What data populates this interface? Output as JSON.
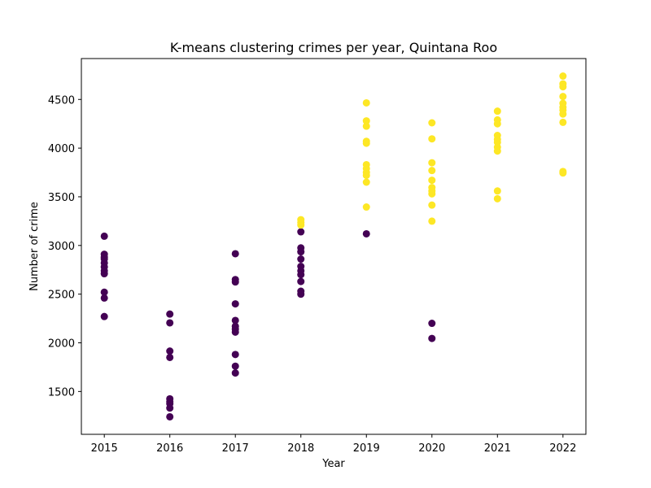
{
  "chart_data": {
    "type": "scatter",
    "title": "K-means clustering crimes per year, Quintana Roo",
    "xlabel": "Year",
    "ylabel": "Number of crime",
    "xlim": [
      2014.65,
      2022.35
    ],
    "ylim": [
      1060,
      4920
    ],
    "x_ticks": [
      2015,
      2016,
      2017,
      2018,
      2019,
      2020,
      2021,
      2022
    ],
    "y_ticks": [
      1500,
      2000,
      2500,
      3000,
      3500,
      4000,
      4500
    ],
    "grid": false,
    "cluster_colors": {
      "cluster_0": "#440154",
      "cluster_1": "#fde725"
    },
    "series": [
      {
        "cluster": 0,
        "color": "#440154",
        "points": [
          [
            2015,
            3095
          ],
          [
            2015,
            2910
          ],
          [
            2015,
            2880
          ],
          [
            2015,
            2860
          ],
          [
            2015,
            2820
          ],
          [
            2015,
            2780
          ],
          [
            2015,
            2740
          ],
          [
            2015,
            2710
          ],
          [
            2015,
            2520
          ],
          [
            2015,
            2460
          ],
          [
            2015,
            2270
          ],
          [
            2016,
            2295
          ],
          [
            2016,
            2205
          ],
          [
            2016,
            1915
          ],
          [
            2016,
            1850
          ],
          [
            2016,
            1425
          ],
          [
            2016,
            1395
          ],
          [
            2016,
            1375
          ],
          [
            2016,
            1330
          ],
          [
            2016,
            1240
          ],
          [
            2017,
            2915
          ],
          [
            2017,
            2650
          ],
          [
            2017,
            2625
          ],
          [
            2017,
            2400
          ],
          [
            2017,
            2230
          ],
          [
            2017,
            2170
          ],
          [
            2017,
            2140
          ],
          [
            2017,
            2110
          ],
          [
            2017,
            1880
          ],
          [
            2017,
            1760
          ],
          [
            2017,
            1690
          ],
          [
            2018,
            3140
          ],
          [
            2018,
            2975
          ],
          [
            2018,
            2935
          ],
          [
            2018,
            2860
          ],
          [
            2018,
            2785
          ],
          [
            2018,
            2740
          ],
          [
            2018,
            2700
          ],
          [
            2018,
            2630
          ],
          [
            2018,
            2530
          ],
          [
            2018,
            2500
          ],
          [
            2019,
            3120
          ],
          [
            2020,
            2200
          ],
          [
            2020,
            2045
          ]
        ]
      },
      {
        "cluster": 1,
        "color": "#fde725",
        "points": [
          [
            2018,
            3265
          ],
          [
            2018,
            3235
          ],
          [
            2018,
            3210
          ],
          [
            2019,
            4465
          ],
          [
            2019,
            4280
          ],
          [
            2019,
            4225
          ],
          [
            2019,
            4070
          ],
          [
            2019,
            4050
          ],
          [
            2019,
            3830
          ],
          [
            2019,
            3790
          ],
          [
            2019,
            3750
          ],
          [
            2019,
            3720
          ],
          [
            2019,
            3650
          ],
          [
            2019,
            3395
          ],
          [
            2020,
            4260
          ],
          [
            2020,
            4095
          ],
          [
            2020,
            3850
          ],
          [
            2020,
            3770
          ],
          [
            2020,
            3670
          ],
          [
            2020,
            3595
          ],
          [
            2020,
            3560
          ],
          [
            2020,
            3530
          ],
          [
            2020,
            3415
          ],
          [
            2020,
            3250
          ],
          [
            2021,
            4380
          ],
          [
            2021,
            4290
          ],
          [
            2021,
            4250
          ],
          [
            2021,
            4130
          ],
          [
            2021,
            4090
          ],
          [
            2021,
            4060
          ],
          [
            2021,
            4010
          ],
          [
            2021,
            3970
          ],
          [
            2021,
            3560
          ],
          [
            2021,
            3480
          ],
          [
            2022,
            4740
          ],
          [
            2022,
            4660
          ],
          [
            2022,
            4630
          ],
          [
            2022,
            4530
          ],
          [
            2022,
            4460
          ],
          [
            2022,
            4420
          ],
          [
            2022,
            4390
          ],
          [
            2022,
            4350
          ],
          [
            2022,
            4265
          ],
          [
            2022,
            3760
          ],
          [
            2022,
            3745
          ]
        ]
      }
    ]
  }
}
